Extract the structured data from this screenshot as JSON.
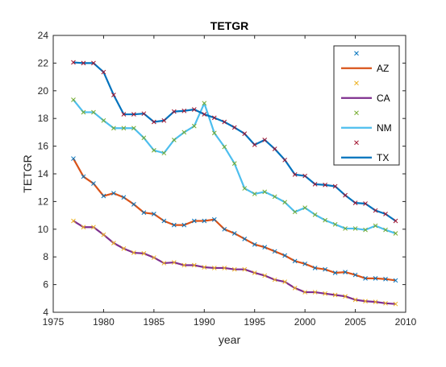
{
  "chart_data": {
    "type": "line",
    "title": "TETGR",
    "xlabel": "year",
    "ylabel": "TETGR",
    "xlim": [
      1975,
      2010
    ],
    "ylim": [
      4,
      24
    ],
    "xticks": [
      "1975",
      "1980",
      "1985",
      "1990",
      "1995",
      "2000",
      "2005",
      "2010"
    ],
    "yticks": [
      "4",
      "6",
      "8",
      "10",
      "12",
      "14",
      "16",
      "18",
      "20",
      "22",
      "24"
    ],
    "grid": false,
    "legend_position": "top-right",
    "x": [
      1977,
      1978,
      1979,
      1980,
      1981,
      1982,
      1983,
      1984,
      1985,
      1986,
      1987,
      1988,
      1989,
      1990,
      1991,
      1992,
      1993,
      1994,
      1995,
      1996,
      1997,
      1998,
      1999,
      2000,
      2001,
      2002,
      2003,
      2004,
      2005,
      2006,
      2007,
      2008,
      2009
    ],
    "series": [
      {
        "name": "AZ",
        "color": "#D95319",
        "marker_color": "#0072BD",
        "values": [
          15.1,
          13.8,
          13.3,
          12.4,
          12.6,
          12.3,
          11.8,
          11.2,
          11.1,
          10.6,
          10.3,
          10.3,
          10.6,
          10.6,
          10.7,
          10.0,
          9.7,
          9.3,
          8.9,
          8.7,
          8.4,
          8.1,
          7.7,
          7.5,
          7.2,
          7.1,
          6.85,
          6.9,
          6.7,
          6.45,
          6.45,
          6.4,
          6.3
        ]
      },
      {
        "name": "CA",
        "color": "#7E2F8E",
        "marker_color": "#EDB120",
        "values": [
          10.6,
          10.15,
          10.15,
          9.6,
          9.0,
          8.6,
          8.3,
          8.25,
          7.95,
          7.55,
          7.6,
          7.4,
          7.4,
          7.25,
          7.2,
          7.2,
          7.1,
          7.1,
          6.85,
          6.65,
          6.35,
          6.2,
          5.75,
          5.45,
          5.45,
          5.35,
          5.25,
          5.15,
          4.9,
          4.8,
          4.75,
          4.65,
          4.6
        ]
      },
      {
        "name": "NM",
        "color": "#4DBEEE",
        "marker_color": "#77AC30",
        "values": [
          19.35,
          18.45,
          18.45,
          17.85,
          17.3,
          17.3,
          17.3,
          16.6,
          15.7,
          15.5,
          16.45,
          17.0,
          17.45,
          19.1,
          16.95,
          15.95,
          14.75,
          12.95,
          12.55,
          12.7,
          12.35,
          11.95,
          11.25,
          11.55,
          11.05,
          10.65,
          10.35,
          10.05,
          10.05,
          9.95,
          10.25,
          9.95,
          9.7
        ]
      },
      {
        "name": "TX",
        "color": "#0072BD",
        "marker_color": "#A2142F",
        "values": [
          22.05,
          22.0,
          22.0,
          21.35,
          19.7,
          18.3,
          18.3,
          18.35,
          17.75,
          17.85,
          18.5,
          18.55,
          18.65,
          18.3,
          18.05,
          17.75,
          17.35,
          16.9,
          16.1,
          16.45,
          15.8,
          15.0,
          13.95,
          13.85,
          13.25,
          13.2,
          13.1,
          12.45,
          11.9,
          11.85,
          11.35,
          11.1,
          10.6
        ]
      }
    ]
  }
}
